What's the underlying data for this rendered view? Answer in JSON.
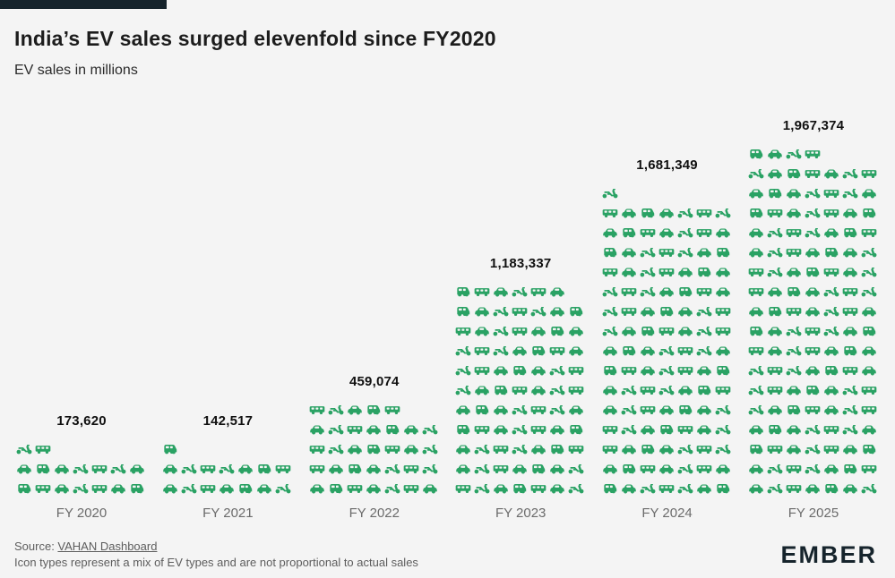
{
  "header": {
    "title": "India’s EV sales surged elevenfold since FY2020",
    "subtitle": "EV sales in millions"
  },
  "chart_data": {
    "type": "pictogram-bar",
    "title": "India’s EV sales surged elevenfold since FY2020",
    "subtitle": "EV sales in millions",
    "categories": [
      "FY 2020",
      "FY 2021",
      "FY 2022",
      "FY 2023",
      "FY 2024",
      "FY 2025"
    ],
    "values": [
      173620,
      142517,
      459074,
      1183337,
      1681349,
      1967374
    ],
    "value_labels": [
      "173,620",
      "142,517",
      "459,074",
      "1,183,337",
      "1,681,349",
      "1,967,374"
    ],
    "icon_counts": [
      16,
      15,
      33,
      76,
      106,
      123
    ],
    "icons_per_row": 7,
    "icon_types": [
      "scooter",
      "van",
      "car",
      "rickshaw",
      "car",
      "scooter",
      "van",
      "scooter",
      "car",
      "rickshaw",
      "van",
      "car"
    ],
    "icon_color": "#2aa264",
    "legend_position": "none",
    "grid": false
  },
  "footer": {
    "source_prefix": "Source: ",
    "source_link": "VAHAN Dashboard",
    "note": "Icon types represent a mix of EV types and are not proportional to actual sales",
    "logo": "EMBER"
  }
}
